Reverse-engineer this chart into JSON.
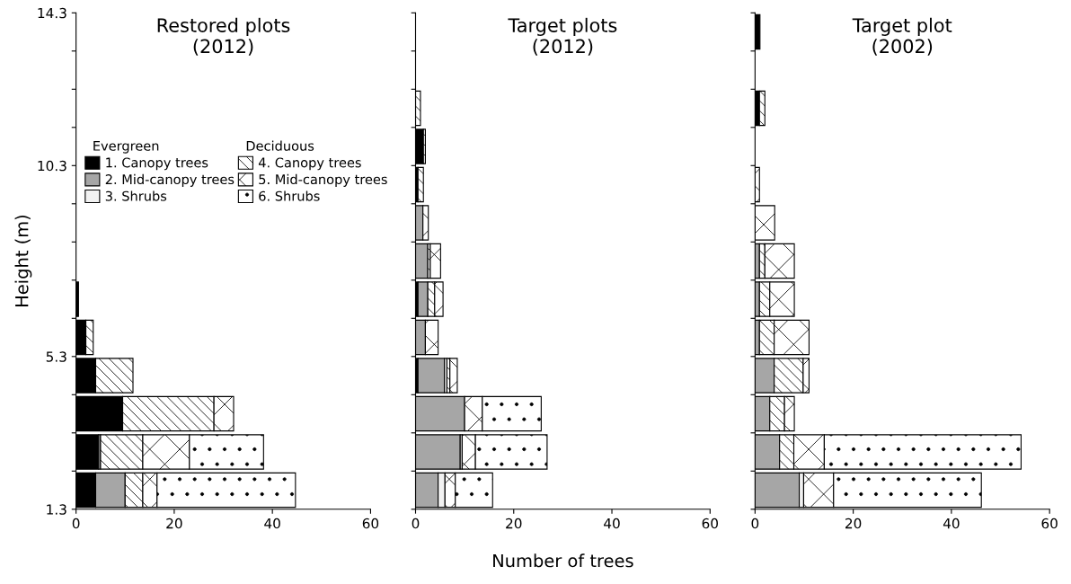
{
  "chart_data": [
    {
      "type": "bar",
      "orientation": "horizontal",
      "stacked": true,
      "title": "Restored plots\n(2012)",
      "ylabel": "Height (m)",
      "legend": "left",
      "annotations": [
        "Evergreen",
        "Deciduous"
      ],
      "x": [
        1.8,
        2.8,
        3.8,
        4.8,
        5.8,
        6.8,
        7.8,
        8.8,
        9.8,
        10.8,
        11.8,
        12.8,
        13.8
      ],
      "xlim": [
        0,
        60
      ],
      "xticks": [
        0,
        20,
        40,
        60
      ],
      "ylim": [
        1.3,
        14.3
      ],
      "yticks": [
        1.3,
        {
          "value": 2.3,
          "label": null
        },
        {
          "value": 3.3,
          "label": null
        },
        {
          "value": 4.3,
          "label": null
        },
        5.3,
        {
          "value": 6.3,
          "label": null
        },
        {
          "value": 7.3,
          "label": null
        },
        {
          "value": 8.3,
          "label": null
        },
        {
          "value": 9.3,
          "label": null
        },
        10.3,
        {
          "value": 11.3,
          "label": null
        },
        {
          "value": 12.3,
          "label": null
        },
        {
          "value": 13.3,
          "label": null
        },
        14.3
      ],
      "series": [
        {
          "name": "1. Canopy trees",
          "color": "#000000",
          "values": [
            4.0,
            4.6,
            9.5,
            4.0,
            2.0,
            0.5,
            0,
            0,
            0,
            0,
            0,
            0,
            0
          ]
        },
        {
          "name": "2. Mid-canopy trees",
          "color": "#a6a6a6",
          "values": [
            6.0,
            0.4,
            0,
            0,
            0,
            0,
            0,
            0,
            0,
            0,
            0,
            0,
            0
          ]
        },
        {
          "name": "3. Shrubs",
          "color": "#f2f2f2",
          "values": [
            0,
            0,
            0,
            0,
            0,
            0,
            0,
            0,
            0,
            0,
            0,
            0,
            0
          ]
        },
        {
          "name": "4. Canopy trees",
          "color": "#ffffff",
          "values": [
            3.6,
            8.6,
            18.6,
            7.6,
            1.5,
            0,
            0,
            0,
            0,
            0,
            0,
            0,
            0
          ]
        },
        {
          "name": "5. Mid-canopy trees",
          "color": "#ffffff",
          "values": [
            2.9,
            9.5,
            4.0,
            0,
            0,
            0,
            0,
            0,
            0,
            0,
            0,
            0,
            0
          ]
        },
        {
          "name": "6. Shrubs",
          "color": "#ffffff",
          "values": [
            28.2,
            15.1,
            0,
            0,
            0,
            0,
            0,
            0,
            0,
            0,
            0,
            0,
            0
          ]
        }
      ]
    },
    {
      "type": "bar",
      "orientation": "horizontal",
      "stacked": true,
      "title": "Target plots\n(2012)",
      "xlabel": "Number of trees",
      "tick_labels": "x",
      "x": [
        1.8,
        2.8,
        3.8,
        4.8,
        5.8,
        6.8,
        7.8,
        8.8,
        9.8,
        10.8,
        11.8,
        12.8,
        13.8
      ],
      "xlim": [
        0,
        60
      ],
      "xticks": [
        0,
        20,
        40,
        60
      ],
      "ylim": [
        1.3,
        14.3
      ],
      "yticks": [
        1.3,
        {
          "value": 2.3,
          "label": null
        },
        {
          "value": 3.3,
          "label": null
        },
        {
          "value": 4.3,
          "label": null
        },
        5.3,
        {
          "value": 6.3,
          "label": null
        },
        {
          "value": 7.3,
          "label": null
        },
        {
          "value": 8.3,
          "label": null
        },
        {
          "value": 9.3,
          "label": null
        },
        10.3,
        {
          "value": 11.3,
          "label": null
        },
        {
          "value": 12.3,
          "label": null
        },
        {
          "value": 13.3,
          "label": null
        },
        14.3
      ],
      "series": [
        {
          "color": "#000000",
          "values": [
            0,
            0,
            0,
            0.5,
            0,
            0.5,
            0,
            0,
            0.5,
            1.6,
            0,
            0,
            0
          ]
        },
        {
          "color": "#a6a6a6",
          "values": [
            4.6,
            9.1,
            10.0,
            5.4,
            2.0,
            2.0,
            2.5,
            1.5,
            0,
            0,
            0,
            0,
            0
          ]
        },
        {
          "color": "#f2f2f2",
          "values": [
            1.4,
            0.4,
            0,
            0.5,
            0,
            0,
            0,
            0,
            0,
            0,
            0,
            0,
            0
          ]
        },
        {
          "color": "#ffffff",
          "values": [
            0,
            0,
            0,
            0.6,
            0,
            1.4,
            0.5,
            0,
            1.1,
            0.4,
            1.0,
            0,
            0
          ]
        },
        {
          "color": "#ffffff",
          "values": [
            2.1,
            2.7,
            3.6,
            1.5,
            2.6,
            1.7,
            2.1,
            1.1,
            0,
            0,
            0,
            0,
            0
          ]
        },
        {
          "color": "#ffffff",
          "values": [
            7.6,
            14.6,
            12.0,
            0,
            0,
            0,
            0,
            0,
            0,
            0,
            0,
            0,
            0
          ]
        }
      ]
    },
    {
      "type": "bar",
      "orientation": "horizontal",
      "stacked": true,
      "title": "Target plot\n(2002)",
      "tick_labels": "x",
      "x": [
        1.8,
        2.8,
        3.8,
        4.8,
        5.8,
        6.8,
        7.8,
        8.8,
        9.8,
        10.8,
        11.8,
        12.8,
        13.8
      ],
      "xlim": [
        0,
        60
      ],
      "xticks": [
        0,
        20,
        40,
        60
      ],
      "ylim": [
        1.3,
        14.3
      ],
      "yticks": [
        1.3,
        {
          "value": 2.3,
          "label": null
        },
        {
          "value": 3.3,
          "label": null
        },
        {
          "value": 4.3,
          "label": null
        },
        5.3,
        {
          "value": 6.3,
          "label": null
        },
        {
          "value": 7.3,
          "label": null
        },
        {
          "value": 8.3,
          "label": null
        },
        {
          "value": 9.3,
          "label": null
        },
        10.3,
        {
          "value": 11.3,
          "label": null
        },
        {
          "value": 12.3,
          "label": null
        },
        {
          "value": 13.3,
          "label": null
        },
        14.3
      ],
      "series": [
        {
          "color": "#000000",
          "values": [
            0,
            0,
            0,
            0,
            0,
            0,
            0,
            0,
            0,
            0,
            0.9,
            0,
            1.0
          ]
        },
        {
          "color": "#a6a6a6",
          "values": [
            9.0,
            5.0,
            3.0,
            3.9,
            0.9,
            0.9,
            0.9,
            0,
            0,
            0,
            0,
            0,
            0
          ]
        },
        {
          "color": "#f2f2f2",
          "values": [
            0.9,
            0,
            0,
            0,
            0,
            0,
            0,
            0,
            0,
            0,
            0,
            0,
            0
          ]
        },
        {
          "color": "#ffffff",
          "values": [
            0,
            2.9,
            3.0,
            5.9,
            3.0,
            2.1,
            1.1,
            0,
            0,
            0,
            1.1,
            0,
            0
          ]
        },
        {
          "color": "#ffffff",
          "values": [
            6.1,
            6.2,
            2.0,
            1.2,
            7.1,
            5.0,
            6.0,
            4.0,
            0.9,
            0,
            0,
            0,
            0
          ]
        },
        {
          "color": "#ffffff",
          "values": [
            30.1,
            40.1,
            0,
            0,
            0,
            0,
            0,
            0,
            0,
            0,
            0,
            0,
            0
          ]
        }
      ]
    }
  ]
}
